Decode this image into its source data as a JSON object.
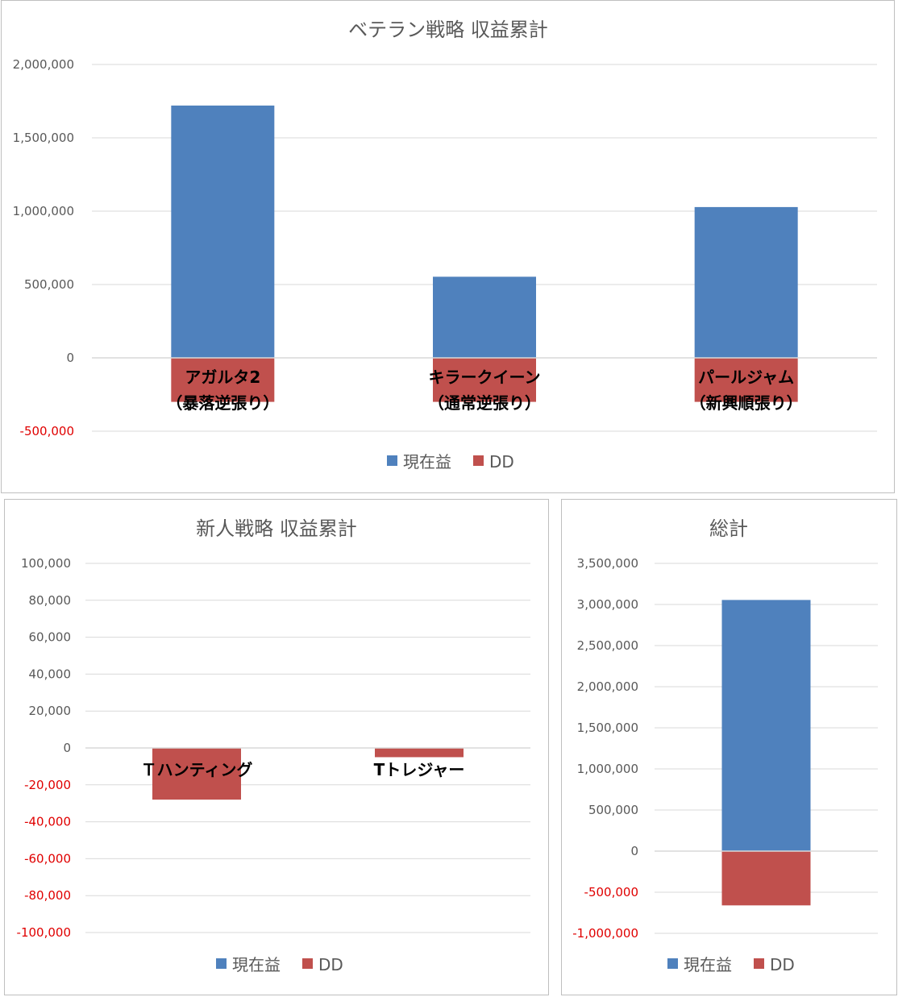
{
  "colors": {
    "profit": "#4f81bd",
    "dd": "#c0504d",
    "grid": "#d9d9d9",
    "axis_text": "#595959",
    "negative_tick": "#e00000"
  },
  "chart_data": [
    {
      "type": "bar",
      "title": "ベテラン戦略 収益累計",
      "categories": [
        [
          "アガルタ2",
          "（暴落逆張り）"
        ],
        [
          "キラークイーン",
          "（通常逆張り）"
        ],
        [
          "パールジャム",
          "（新興順張り）"
        ]
      ],
      "series": [
        {
          "name": "現在益",
          "values": [
            1720000,
            553000,
            1028000
          ]
        },
        {
          "name": "DD",
          "values": [
            -300000,
            -300000,
            -300000
          ]
        }
      ],
      "ylim": [
        -500000,
        2000000
      ],
      "yticks": [
        2000000,
        1500000,
        1000000,
        500000,
        0,
        -500000
      ],
      "ytick_labels": [
        "2,000,000",
        "1,500,000",
        "1,000,000",
        "500,000",
        "0",
        "-500,000"
      ],
      "grid": true,
      "legend": "bottom",
      "legend_labels": [
        "現在益",
        "DD"
      ]
    },
    {
      "type": "bar",
      "title": "新人戦略 収益累計",
      "categories": [
        [
          "Ｔハンティング"
        ],
        [
          "Tトレジャー"
        ]
      ],
      "series": [
        {
          "name": "現在益",
          "values": [
            0,
            0
          ]
        },
        {
          "name": "DD",
          "values": [
            -28000,
            -5000
          ]
        }
      ],
      "ylim": [
        -100000,
        100000
      ],
      "yticks": [
        100000,
        80000,
        60000,
        40000,
        20000,
        0,
        -20000,
        -40000,
        -60000,
        -80000,
        -100000
      ],
      "ytick_labels": [
        "100,000",
        "80,000",
        "60,000",
        "40,000",
        "20,000",
        "0",
        "-20,000",
        "-40,000",
        "-60,000",
        "-80,000",
        "-100,000"
      ],
      "grid": true,
      "legend": "bottom",
      "legend_labels": [
        "現在益",
        "DD"
      ]
    },
    {
      "type": "bar",
      "title": "総計",
      "categories": [
        [
          ""
        ]
      ],
      "series": [
        {
          "name": "現在益",
          "values": [
            3055000
          ]
        },
        {
          "name": "DD",
          "values": [
            -660000
          ]
        }
      ],
      "ylim": [
        -1000000,
        3500000
      ],
      "yticks": [
        3500000,
        3000000,
        2500000,
        2000000,
        1500000,
        1000000,
        500000,
        0,
        -500000,
        -1000000
      ],
      "ytick_labels": [
        "3,500,000",
        "3,000,000",
        "2,500,000",
        "2,000,000",
        "1,500,000",
        "1,000,000",
        "500,000",
        "0",
        "-500,000",
        "-1,000,000"
      ],
      "grid": true,
      "legend": "bottom",
      "legend_labels": [
        "現在益",
        "DD"
      ]
    }
  ]
}
